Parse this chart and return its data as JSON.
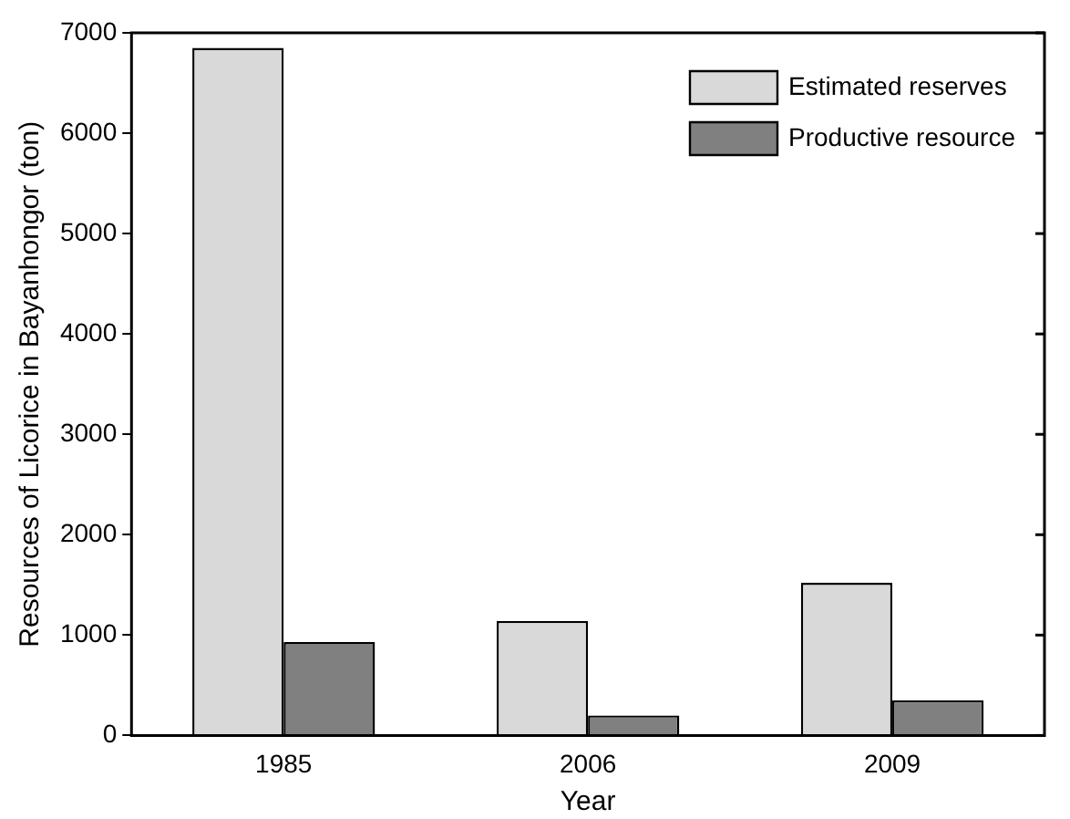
{
  "chart_data": {
    "type": "bar",
    "xlabel": "Year",
    "ylabel": "Resources of Licorice in Bayanhongor (ton)",
    "categories": [
      "1985",
      "2006",
      "2009"
    ],
    "series": [
      {
        "name": "Estimated reserves",
        "color": "#d9d9d9",
        "values": [
          6850,
          1140,
          1520
        ]
      },
      {
        "name": "Productive resource",
        "color": "#808080",
        "values": [
          930,
          200,
          350
        ]
      }
    ],
    "ylim": [
      0,
      7000
    ],
    "yticks": [
      0,
      1000,
      2000,
      3000,
      4000,
      5000,
      6000,
      7000
    ],
    "grid": false,
    "legend": "top right"
  }
}
